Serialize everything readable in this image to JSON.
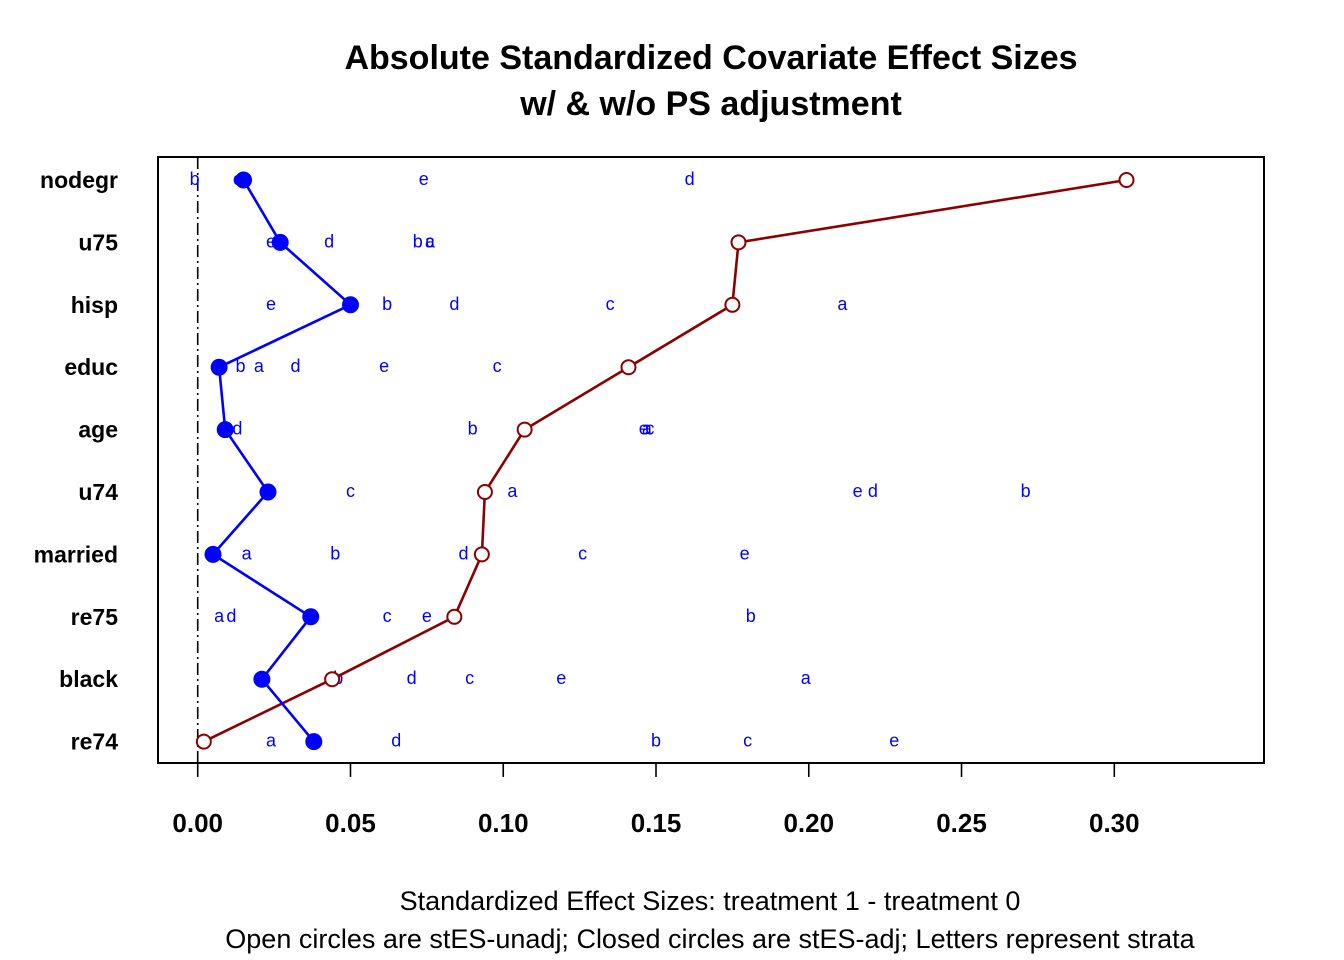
{
  "chart_data": {
    "type": "line",
    "title": "Absolute Standardized Covariate Effect Sizes",
    "subtitle": "w/ & w/o PS adjustment",
    "xlabel": "Standardized Effect Sizes: treatment 1 - treatment  0",
    "xlabel2": "Open circles are stES-unadj; Closed circles are stES-adj; Letters represent strata",
    "xlim": [
      -0.013,
      0.349
    ],
    "xticks": [
      "0.00",
      "0.05",
      "0.10",
      "0.15",
      "0.20",
      "0.25",
      "0.30"
    ],
    "xtick_values": [
      0,
      0.05,
      0.1,
      0.15,
      0.2,
      0.25,
      0.3
    ],
    "reference_line": 0,
    "categories": [
      "nodegr",
      "u75",
      "hisp",
      "educ",
      "age",
      "u74",
      "married",
      "re75",
      "black",
      "re74"
    ],
    "series": [
      {
        "name": "stES-unadj",
        "marker": "open-circle",
        "color": "#8b0000",
        "values": [
          0.304,
          0.177,
          0.175,
          0.141,
          0.107,
          0.094,
          0.093,
          0.084,
          0.044,
          0.002
        ]
      },
      {
        "name": "stES-adj",
        "marker": "closed-circle",
        "color": "#0000ff",
        "values": [
          0.015,
          0.027,
          0.05,
          0.007,
          0.009,
          0.023,
          0.005,
          0.037,
          0.021,
          0.038
        ]
      }
    ],
    "strata_color": "#0000ff",
    "strata": {
      "nodegr": {
        "a": 0.014,
        "b": -0.001,
        "c": 0.013,
        "d": 0.161,
        "e": 0.074
      },
      "u75": {
        "a": 0.076,
        "b": 0.072,
        "c": 0.076,
        "d": 0.043,
        "e": 0.024
      },
      "hisp": {
        "a": 0.211,
        "b": 0.062,
        "c": 0.135,
        "d": 0.084,
        "e": 0.024
      },
      "educ": {
        "a": 0.02,
        "b": 0.014,
        "c": 0.098,
        "d": 0.032,
        "e": 0.061
      },
      "age": {
        "a": 0.147,
        "b": 0.09,
        "c": 0.148,
        "d": 0.013,
        "e": 0.146
      },
      "u74": {
        "a": 0.103,
        "b": 0.271,
        "c": 0.05,
        "d": 0.221,
        "e": 0.216
      },
      "married": {
        "a": 0.016,
        "b": 0.045,
        "c": 0.126,
        "d": 0.087,
        "e": 0.179
      },
      "re75": {
        "a": 0.007,
        "b": 0.181,
        "c": 0.062,
        "d": 0.011,
        "e": 0.075
      },
      "black": {
        "a": 0.199,
        "b": 0.046,
        "c": 0.089,
        "d": 0.07,
        "e": 0.119
      },
      "re74": {
        "a": 0.024,
        "b": 0.15,
        "c": 0.18,
        "d": 0.065,
        "e": 0.228
      }
    }
  }
}
